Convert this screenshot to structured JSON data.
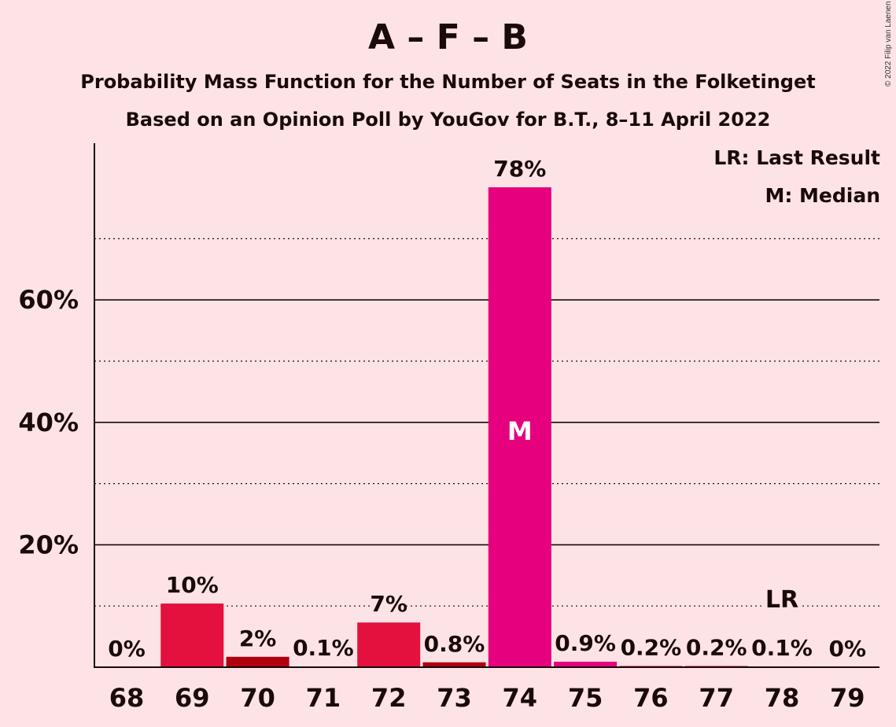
{
  "header": {
    "title": "A – F – B",
    "subtitle": "Probability Mass Function for the Number of Seats in the Folketinget",
    "subtitle2": "Based on an Opinion Poll by YouGov for B.T., 8–11 April 2022",
    "copyright": "© 2022 Filip van Laenen"
  },
  "legend": {
    "last_result": "LR: Last Result",
    "median": "M: Median"
  },
  "chart_data": {
    "type": "bar",
    "title": "A – F – B",
    "subtitle": "Probability Mass Function for the Number of Seats in the Folketinget",
    "xlabel": "",
    "ylabel": "",
    "categories": [
      "68",
      "69",
      "70",
      "71",
      "72",
      "73",
      "74",
      "75",
      "76",
      "77",
      "78",
      "79"
    ],
    "values": [
      0,
      10.4,
      1.7,
      0.1,
      7.3,
      0.8,
      78.4,
      0.9,
      0.2,
      0.2,
      0.1,
      0
    ],
    "labels": [
      "0%",
      "10%",
      "2%",
      "0.1%",
      "7%",
      "0.8%",
      "78%",
      "0.9%",
      "0.2%",
      "0.2%",
      "0.1%",
      "0%"
    ],
    "bar_colors": [
      "#e4103e",
      "#e4103e",
      "#b0000e",
      "#e4103e",
      "#e4103e",
      "#b0000e",
      "#e6007e",
      "#e6007e",
      "#e4103e",
      "#e4103e",
      "#e4103e",
      "#e4103e"
    ],
    "ylim": [
      0,
      85
    ],
    "yticks": [
      20,
      40,
      60
    ],
    "ytick_labels": [
      "20%",
      "40%",
      "60%"
    ],
    "minor_gridlines": [
      10,
      30,
      50,
      70
    ],
    "median_category": "74",
    "median_mark": "M",
    "last_result_category": "78",
    "last_result_mark": "LR",
    "legend_position": "top-right"
  }
}
